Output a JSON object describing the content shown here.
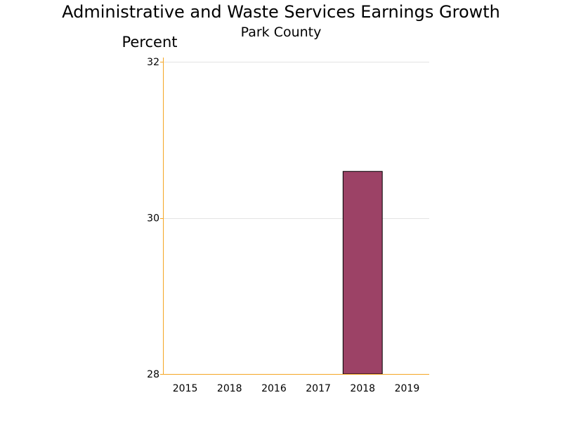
{
  "chart_data": {
    "type": "bar",
    "title": "Administrative and Waste Services Earnings Growth",
    "subtitle": "Park County",
    "ylabel": "Percent",
    "xlabel": "",
    "categories": [
      "2015",
      "2018",
      "2016",
      "2017",
      "2018",
      "2019"
    ],
    "values": [
      null,
      null,
      null,
      null,
      30.6,
      null
    ],
    "ylim": [
      28,
      32
    ],
    "yticks": [
      28,
      30,
      32
    ],
    "grid": true,
    "legend": "none",
    "colors": {
      "bar": "#9c4266",
      "bar_outline": "#000000",
      "axis": "#f5a623",
      "grid": "#e3e3e3"
    }
  }
}
